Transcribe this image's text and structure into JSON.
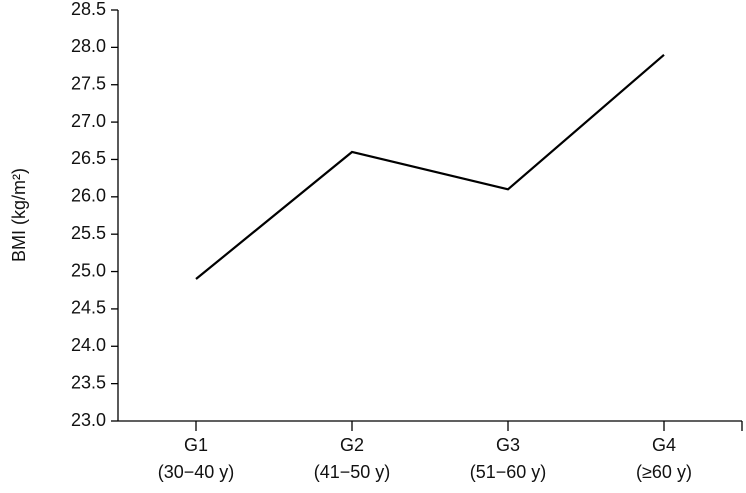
{
  "chart_data": {
    "type": "line",
    "y_label": "BMI (kg/m²)",
    "categories": [
      "G1",
      "G2",
      "G3",
      "G4"
    ],
    "category_sublabels": [
      "(30−40 y)",
      "(41−50 y)",
      "(51−60 y)",
      "(≥60 y)"
    ],
    "values": [
      24.9,
      26.6,
      26.1,
      27.9
    ],
    "color": "#000000",
    "ylim": [
      23,
      28.5
    ],
    "yticks": [
      {
        "value": 23,
        "label": "23.0"
      },
      23.5,
      {
        "value": 24,
        "label": "24.0"
      },
      24.5,
      {
        "value": 25,
        "label": "25.0"
      },
      25.5,
      {
        "value": 26,
        "label": "26.0"
      },
      26.5,
      {
        "value": 27,
        "label": "27.0"
      },
      27.5,
      {
        "value": 28,
        "label": "28.0"
      },
      28.5
    ],
    "grid": false
  }
}
